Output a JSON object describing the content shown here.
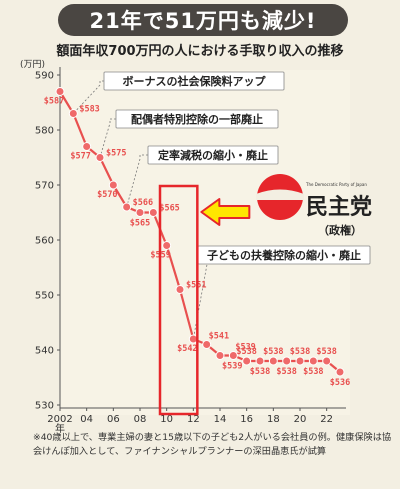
{
  "banner": "21年で51万円も減少!",
  "subtitle": "額面年収700万円の人における手取り収入の推移",
  "footnote": "※40歳以上で、専業主婦の妻と15歳以下の子ども2人がいる会社員の例。健康保険は協会けんぽ加入として、ファイナンシャルプランナーの深田晶恵氏が試算",
  "logo": {
    "small": "The Democratic Party of Japan",
    "title": "民主党",
    "sub": "（政権）"
  },
  "colors": {
    "line": "#e8504f",
    "marker": "#ef6a6a",
    "label": "#e8504f",
    "highlight_box": "#e6262b",
    "arrow_fill": "#ffe600",
    "arrow_stroke": "#e6262b",
    "logo_red": "#e6262b",
    "banner_bg": "#4a4642"
  },
  "chart_data": {
    "type": "line",
    "unit": "(万円)",
    "x": [
      2002,
      2003,
      2004,
      2005,
      2006,
      2007,
      2008,
      2009,
      2010,
      2011,
      2012,
      2013,
      2014,
      2015,
      2016,
      2017,
      2018,
      2019,
      2020,
      2021,
      2022,
      2023
    ],
    "values": [
      587,
      583,
      577,
      575,
      570,
      566,
      565,
      565,
      559,
      551,
      542,
      541,
      539,
      539,
      538,
      538,
      538,
      538,
      538,
      538,
      538,
      536
    ],
    "labels": [
      "587",
      "583",
      "577",
      "575",
      "570",
      "566",
      "565",
      "565",
      "559",
      "551",
      "542",
      "541",
      "539",
      "539",
      "538",
      "538",
      "538",
      "538",
      "538",
      "538",
      "538",
      "536"
    ],
    "xticks": [
      2002,
      2004,
      2006,
      2008,
      2010,
      2012,
      2014,
      2016,
      2018,
      2020,
      2022
    ],
    "xtick_labels": [
      "2002\n年",
      "04",
      "06",
      "08",
      "10",
      "12",
      "14",
      "16",
      "18",
      "20",
      "22"
    ],
    "yticks": [
      530,
      540,
      550,
      560,
      570,
      580,
      590
    ],
    "ylim": [
      530,
      590
    ],
    "xlim": [
      2002,
      2023
    ],
    "grid": false,
    "highlight_range": [
      2009.5,
      2012.3
    ],
    "annotations": [
      "ボーナスの社会保険料アップ",
      "配偶者特別控除の一部廃止",
      "定率減税の縮小・廃止",
      "子どもの扶養控除の縮小・廃止"
    ]
  }
}
